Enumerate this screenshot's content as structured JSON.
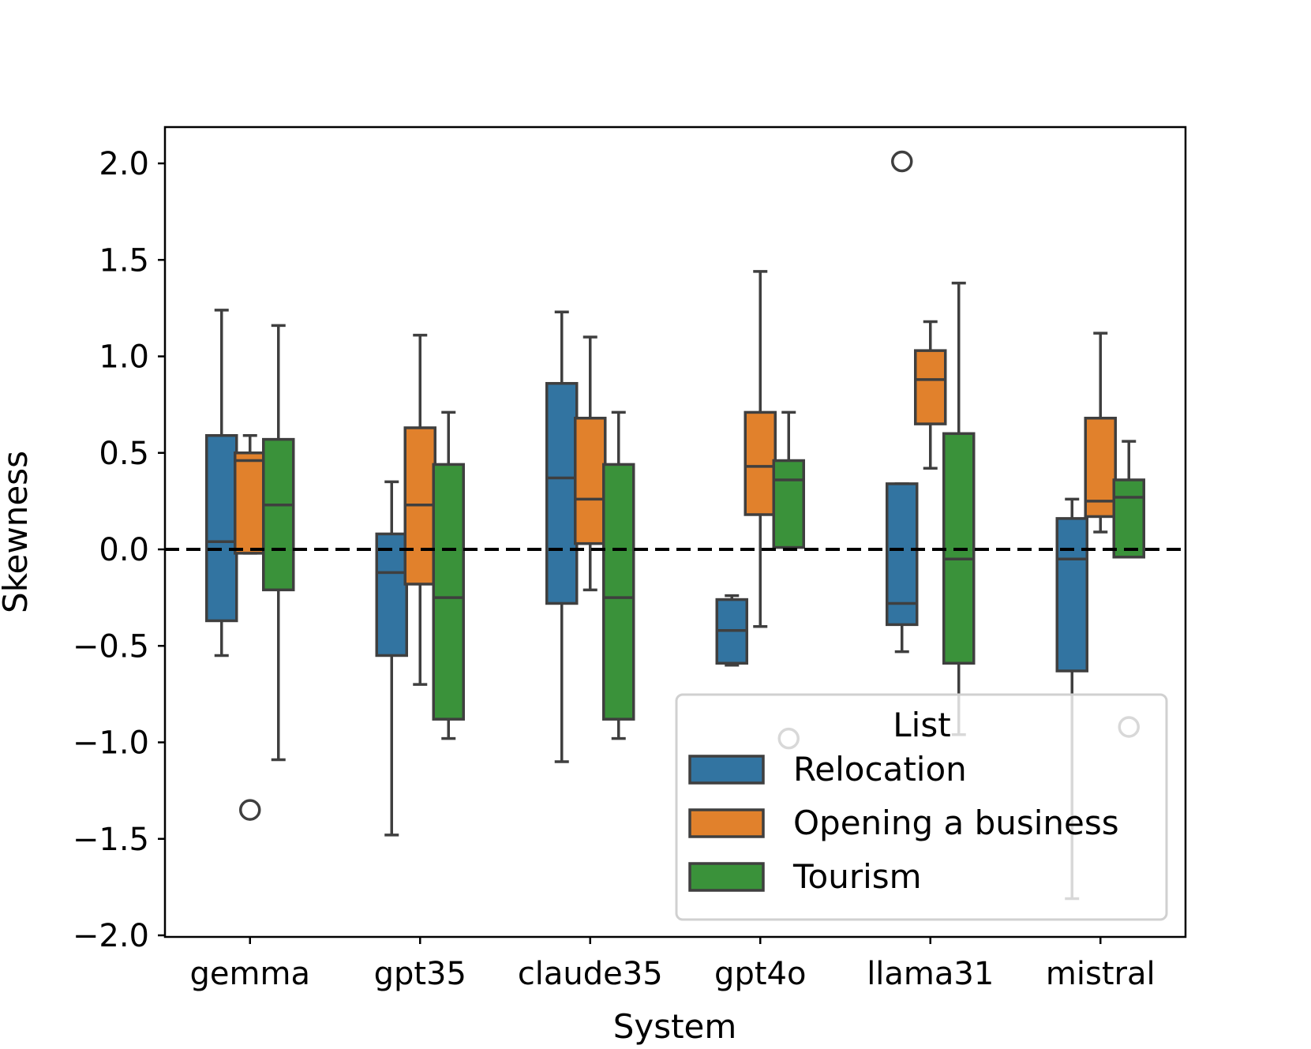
{
  "chart_data": {
    "type": "boxplot",
    "title": "",
    "xlabel": "System",
    "ylabel": "Skewness",
    "ylim": [
      -2.0,
      2.2
    ],
    "yticks": [
      -2.0,
      -1.5,
      -1.0,
      -0.5,
      0.0,
      0.5,
      1.0,
      1.5,
      2.0
    ],
    "ytick_labels": [
      "−2.0",
      "−1.5",
      "−1.0",
      "−0.5",
      "0.0",
      "0.5",
      "1.0",
      "1.5",
      "2.0"
    ],
    "categories": [
      "gemma",
      "gpt35",
      "claude35",
      "gpt4o",
      "llama31",
      "mistral"
    ],
    "reference_line": {
      "y": 0.0,
      "style": "dashed",
      "color": "#000000"
    },
    "edge_color": "#3f3f3f",
    "legend": {
      "title": "List",
      "placement": "lower-right"
    },
    "series": [
      {
        "name": "Relocation",
        "color": "#3274a1",
        "boxes": [
          {
            "whislo": -0.55,
            "q1": -0.37,
            "med": 0.04,
            "q3": 0.59,
            "whishi": 1.24,
            "fliers": []
          },
          {
            "whislo": -1.48,
            "q1": -0.55,
            "med": -0.12,
            "q3": 0.08,
            "whishi": 0.35,
            "fliers": []
          },
          {
            "whislo": -1.1,
            "q1": -0.28,
            "med": 0.37,
            "q3": 0.86,
            "whishi": 1.23,
            "fliers": []
          },
          {
            "whislo": -0.6,
            "q1": -0.59,
            "med": -0.42,
            "q3": -0.26,
            "whishi": -0.24,
            "fliers": []
          },
          {
            "whislo": -0.53,
            "q1": -0.39,
            "med": -0.28,
            "q3": 0.34,
            "whishi": 0.34,
            "fliers": [
              2.01
            ]
          },
          {
            "whislo": -1.81,
            "q1": -0.63,
            "med": -0.05,
            "q3": 0.16,
            "whishi": 0.26,
            "fliers": []
          }
        ]
      },
      {
        "name": "Opening a business",
        "color": "#e1812c",
        "boxes": [
          {
            "whislo": -0.02,
            "q1": -0.02,
            "med": 0.46,
            "q3": 0.5,
            "whishi": 0.59,
            "fliers": [
              -1.35
            ]
          },
          {
            "whislo": -0.7,
            "q1": -0.18,
            "med": 0.23,
            "q3": 0.63,
            "whishi": 1.11,
            "fliers": []
          },
          {
            "whislo": -0.21,
            "q1": 0.03,
            "med": 0.26,
            "q3": 0.68,
            "whishi": 1.1,
            "fliers": []
          },
          {
            "whislo": -0.4,
            "q1": 0.18,
            "med": 0.43,
            "q3": 0.71,
            "whishi": 1.44,
            "fliers": []
          },
          {
            "whislo": 0.42,
            "q1": 0.65,
            "med": 0.88,
            "q3": 1.03,
            "whishi": 1.18,
            "fliers": []
          },
          {
            "whislo": 0.09,
            "q1": 0.17,
            "med": 0.25,
            "q3": 0.68,
            "whishi": 1.12,
            "fliers": []
          }
        ]
      },
      {
        "name": "Tourism",
        "color": "#3a923a",
        "boxes": [
          {
            "whislo": -1.09,
            "q1": -0.21,
            "med": 0.23,
            "q3": 0.57,
            "whishi": 1.16,
            "fliers": []
          },
          {
            "whislo": -0.98,
            "q1": -0.88,
            "med": -0.25,
            "q3": 0.44,
            "whishi": 0.71,
            "fliers": []
          },
          {
            "whislo": -0.98,
            "q1": -0.88,
            "med": -0.25,
            "q3": 0.44,
            "whishi": 0.71,
            "fliers": []
          },
          {
            "whislo": 0.01,
            "q1": 0.01,
            "med": 0.36,
            "q3": 0.46,
            "whishi": 0.71,
            "fliers": [
              -0.98
            ]
          },
          {
            "whislo": -0.96,
            "q1": -0.59,
            "med": -0.05,
            "q3": 0.6,
            "whishi": 1.38,
            "fliers": []
          },
          {
            "whislo": -0.04,
            "q1": -0.04,
            "med": 0.27,
            "q3": 0.36,
            "whishi": 0.56,
            "fliers": [
              -0.92
            ]
          }
        ]
      }
    ]
  }
}
